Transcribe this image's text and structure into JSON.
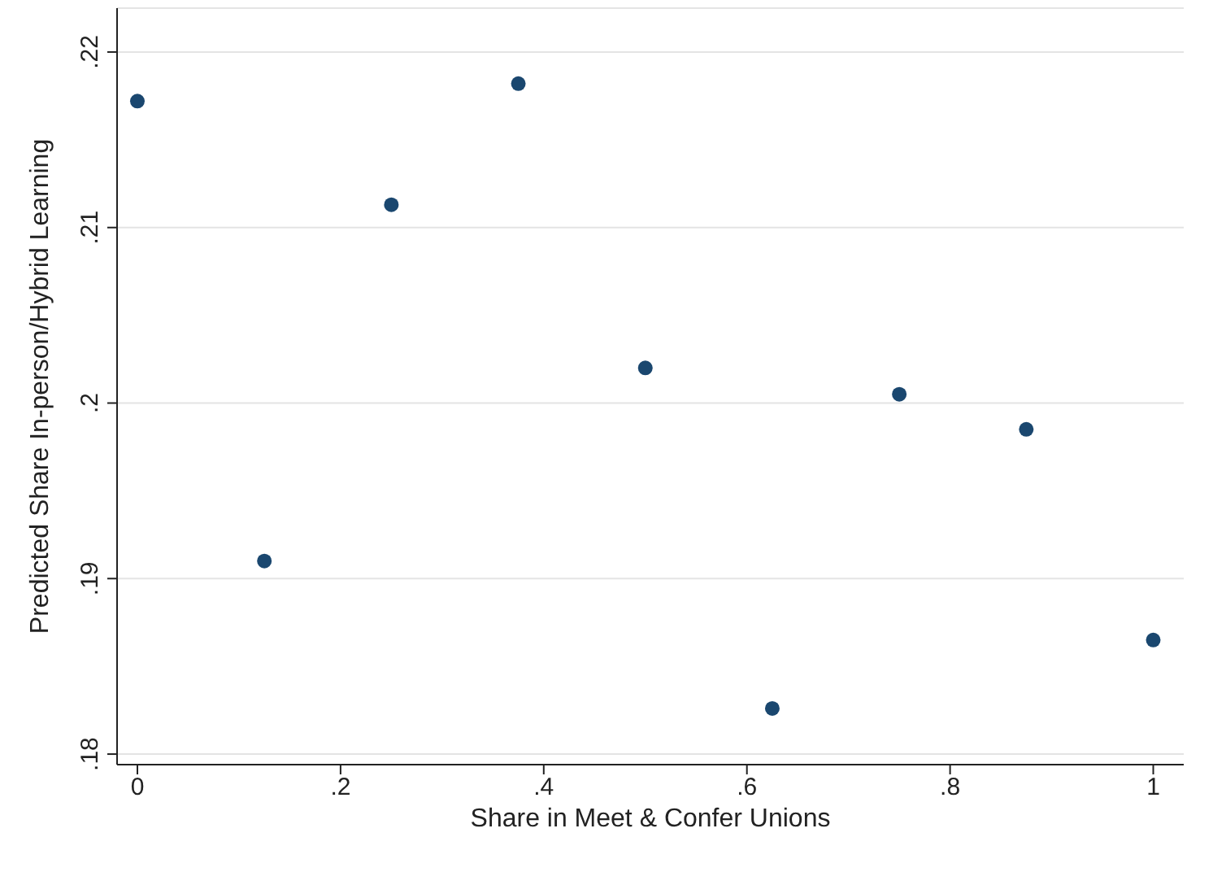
{
  "chart_data": {
    "type": "scatter",
    "xlabel": "Share in Meet & Confer Unions",
    "ylabel": "Predicted Share In-person/Hybrid Learning",
    "x": [
      0,
      0.125,
      0.25,
      0.375,
      0.5,
      0.625,
      0.75,
      0.875,
      1
    ],
    "series": [
      {
        "color": "#1a476f",
        "values": [
          0.2172,
          0.191,
          0.2113,
          0.2182,
          0.202,
          0.1826,
          0.2005,
          0.1985,
          0.1865
        ]
      }
    ],
    "xlim": [
      -0.02,
      1.03
    ],
    "ylim": [
      0.1794,
      0.2225
    ],
    "xticks": [
      {
        "value": 0,
        "label": "0"
      },
      {
        "value": 0.2,
        "label": ".2"
      },
      {
        "value": 0.4,
        "label": ".4"
      },
      {
        "value": 0.6,
        "label": ".6"
      },
      {
        "value": 0.8,
        "label": ".8"
      },
      {
        "value": 1,
        "label": "1"
      }
    ],
    "yticks": [
      {
        "value": 0.18,
        "label": ".18"
      },
      {
        "value": 0.19,
        "label": ".19"
      },
      {
        "value": 0.2,
        "label": ".2"
      },
      {
        "value": 0.21,
        "label": ".21"
      },
      {
        "value": 0.22,
        "label": ".22"
      }
    ],
    "grid": "y",
    "marker": "circle"
  }
}
